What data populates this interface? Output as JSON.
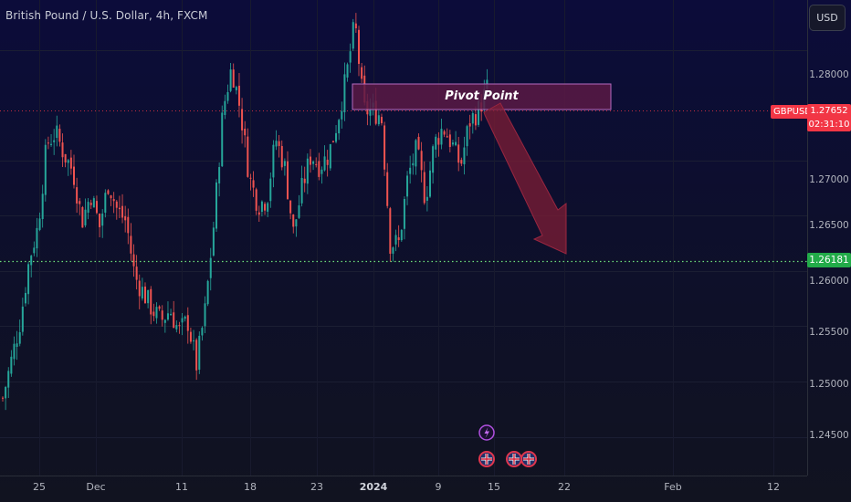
{
  "header": {
    "title": "British Pound / U.S. Dollar, 4h, FXCM",
    "currency_button": "USD"
  },
  "price_axis": {
    "ticks": [
      "1.28000",
      "1.27000",
      "1.26500",
      "1.26000",
      "1.25500",
      "1.25000",
      "1.24500"
    ],
    "symbol": "GBPUSD",
    "current_price": "1.27652",
    "countdown": "02:31:10",
    "support_price": "1.26181"
  },
  "time_axis": {
    "labels": [
      "25",
      "Dec",
      "11",
      "18",
      "23",
      "2024",
      "9",
      "15",
      "22",
      "Feb",
      "12"
    ]
  },
  "annotation": {
    "pivot_label": "Pivot Point"
  },
  "colors": {
    "up": "#26a69a",
    "down": "#ef5350",
    "pivot_fill": "#5a1a45",
    "pivot_border": "#b56ac0",
    "arrow": "#7d1d35",
    "support_line": "#4caf50",
    "current_line": "#f23645"
  },
  "event_icons": [
    "lightning-icon",
    "uk-flag-icon",
    "uk-flag-icon",
    "uk-flag-icon"
  ],
  "chart_data": {
    "type": "candlestick",
    "title": "British Pound / U.S. Dollar, 4h, FXCM",
    "symbol": "GBPUSD",
    "ylim": [
      1.2415,
      1.2845
    ],
    "y_ticks": [
      1.28,
      1.27,
      1.265,
      1.26,
      1.255,
      1.25,
      1.245
    ],
    "x_labels": [
      "25",
      "Dec",
      "11",
      "18",
      "23",
      "2024",
      "9",
      "15",
      "22",
      "Feb",
      "12"
    ],
    "current_price": 1.27652,
    "support_level": 1.26181,
    "pivot_zone": [
      1.2765,
      1.2791
    ],
    "projection": {
      "from": 1.2765,
      "to": 1.2618
    },
    "close_path": [
      1.2485,
      1.252,
      1.2555,
      1.261,
      1.264,
      1.2715,
      1.2725,
      1.2705,
      1.269,
      1.2645,
      1.267,
      1.264,
      1.268,
      1.2655,
      1.2645,
      1.2595,
      1.258,
      1.2565,
      1.2555,
      1.2565,
      1.2545,
      1.2555,
      1.2515,
      1.2565,
      1.2645,
      1.2745,
      1.2785,
      1.2745,
      1.2685,
      1.266,
      1.2665,
      1.272,
      1.2695,
      1.2635,
      1.2675,
      1.2705,
      1.2695,
      1.2705,
      1.2735,
      1.2775,
      1.2825,
      1.2745,
      1.2745,
      1.274,
      1.2625,
      1.2625,
      1.2685,
      1.271,
      1.2665,
      1.2715,
      1.273,
      1.2715,
      1.2695,
      1.2735,
      1.2745,
      1.2765
    ]
  }
}
